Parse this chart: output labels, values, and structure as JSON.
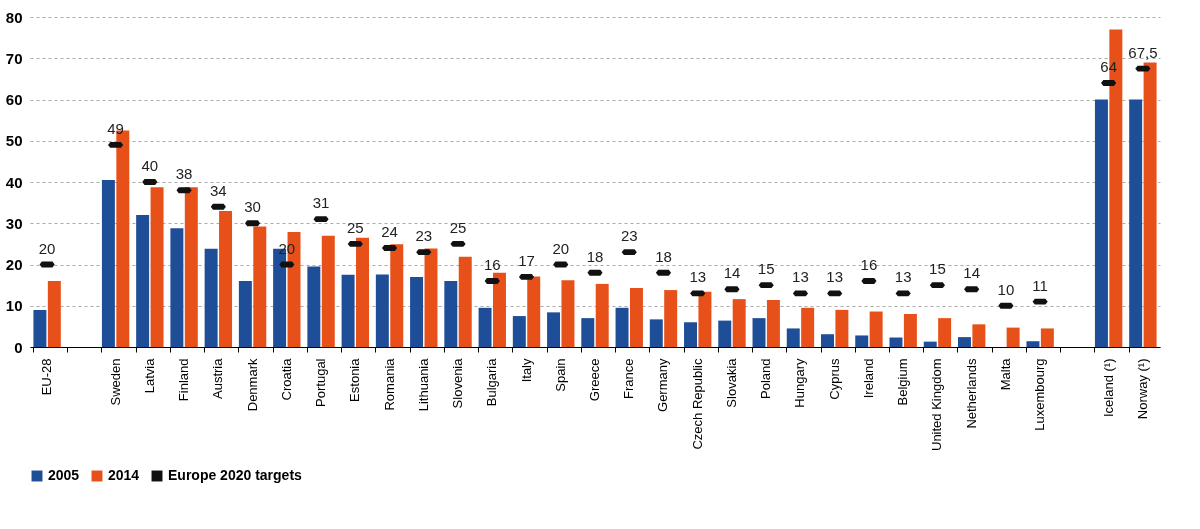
{
  "chart_data": {
    "type": "bar",
    "categories": [
      "EU-28",
      null,
      "Sweden",
      "Latvia",
      "Finland",
      "Austria",
      "Denmark",
      "Croatia",
      "Portugal",
      "Estonia",
      "Romania",
      "Lithuania",
      "Slovenia",
      "Bulgaria",
      "Italy",
      "Spain",
      "Greece",
      "France",
      "Germany",
      "Czech Republic",
      "Slovakia",
      "Poland",
      "Hungary",
      "Cyprus",
      "Ireland",
      "Belgium",
      "United Kingdom",
      "Netherlands",
      "Malta",
      "Luxembourg",
      null,
      "Iceland (¹)",
      "Norway (¹)"
    ],
    "series": [
      {
        "name": "2005",
        "color": "#1f4e99",
        "values": [
          9,
          null,
          40.5,
          32,
          28.8,
          23.8,
          16,
          23.8,
          19.5,
          17.5,
          17.6,
          17,
          16,
          9.5,
          7.5,
          8.4,
          7,
          9.5,
          6.7,
          6,
          6.4,
          7,
          4.5,
          3.1,
          2.8,
          2.3,
          1.3,
          2.4,
          0,
          1.4,
          null,
          60,
          60
        ]
      },
      {
        "name": "2014",
        "color": "#e8501a",
        "values": [
          16,
          null,
          52.5,
          38.7,
          38.7,
          33,
          29.2,
          27.9,
          27,
          26.5,
          24.9,
          23.9,
          21.9,
          18,
          17.1,
          16.2,
          15.3,
          14.3,
          13.8,
          13.4,
          11.6,
          11.4,
          9.5,
          9,
          8.6,
          8,
          7,
          5.5,
          4.7,
          4.5,
          null,
          77,
          69
        ]
      },
      {
        "name": "Europe 2020 targets",
        "type": "scatter",
        "color": "#111111",
        "values": [
          20,
          null,
          49,
          40,
          38,
          34,
          30,
          20,
          31,
          25,
          24,
          23,
          25,
          16,
          17,
          20,
          18,
          23,
          18,
          13,
          14,
          15,
          13,
          13,
          16,
          13,
          15,
          14,
          10,
          11,
          null,
          64,
          67.5
        ],
        "value_labels": [
          "20",
          null,
          "49",
          "40",
          "38",
          "34",
          "30",
          "20",
          "31",
          "25",
          "24",
          "23",
          "25",
          "16",
          "17",
          "20",
          "18",
          "23",
          "18",
          "13",
          "14",
          "15",
          "13",
          "13",
          "16",
          "13",
          "15",
          "14",
          "10",
          "11",
          null,
          "64",
          "67,5"
        ]
      }
    ],
    "ylim": [
      0,
      80
    ],
    "yticks": [
      0,
      10,
      20,
      30,
      40,
      50,
      60,
      70,
      80
    ],
    "grid": "y",
    "legend": "bottom"
  }
}
